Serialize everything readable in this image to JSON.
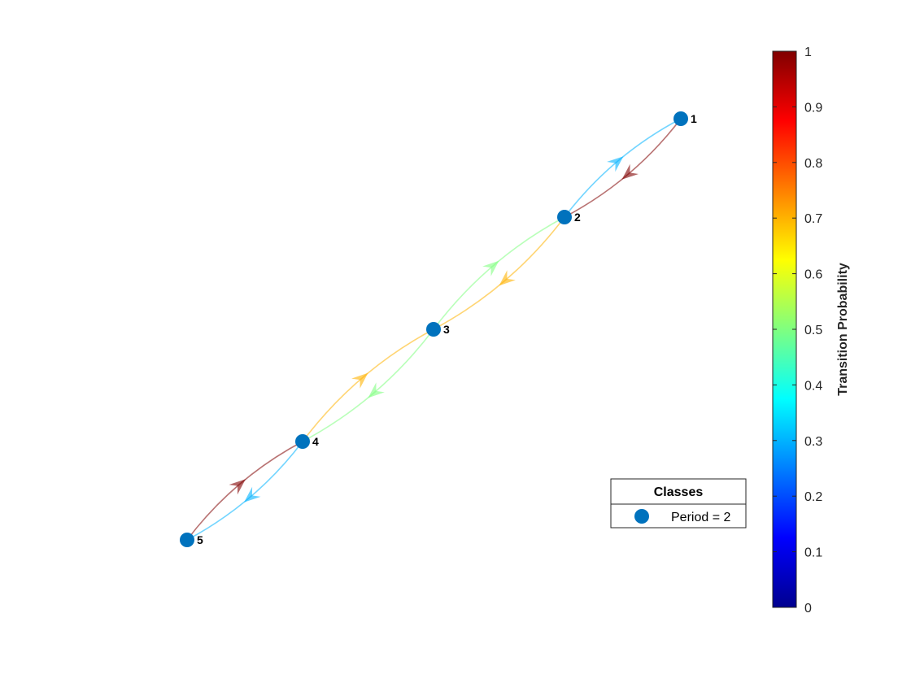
{
  "graph": {
    "nodes": [
      {
        "id": "1",
        "label": "1"
      },
      {
        "id": "2",
        "label": "2"
      },
      {
        "id": "3",
        "label": "3"
      },
      {
        "id": "4",
        "label": "4"
      },
      {
        "id": "5",
        "label": "5"
      }
    ],
    "edges": [
      {
        "from": "1",
        "to": "2",
        "probability": 1.0
      },
      {
        "from": "2",
        "to": "1",
        "probability": 0.3
      },
      {
        "from": "2",
        "to": "3",
        "probability": 0.7
      },
      {
        "from": "3",
        "to": "2",
        "probability": 0.5
      },
      {
        "from": "3",
        "to": "4",
        "probability": 0.5
      },
      {
        "from": "4",
        "to": "3",
        "probability": 0.7
      },
      {
        "from": "4",
        "to": "5",
        "probability": 0.3
      },
      {
        "from": "5",
        "to": "4",
        "probability": 1.0
      }
    ],
    "node_color": "#0072BD"
  },
  "colorbar": {
    "label": "Transition Probability",
    "ticks": [
      "0",
      "0.1",
      "0.2",
      "0.3",
      "0.4",
      "0.5",
      "0.6",
      "0.7",
      "0.8",
      "0.9",
      "1"
    ],
    "range": [
      0,
      1
    ],
    "colormap": "jet"
  },
  "legend": {
    "title": "Classes",
    "entries": [
      {
        "label": "Period = 2",
        "color": "#0072BD"
      }
    ]
  }
}
